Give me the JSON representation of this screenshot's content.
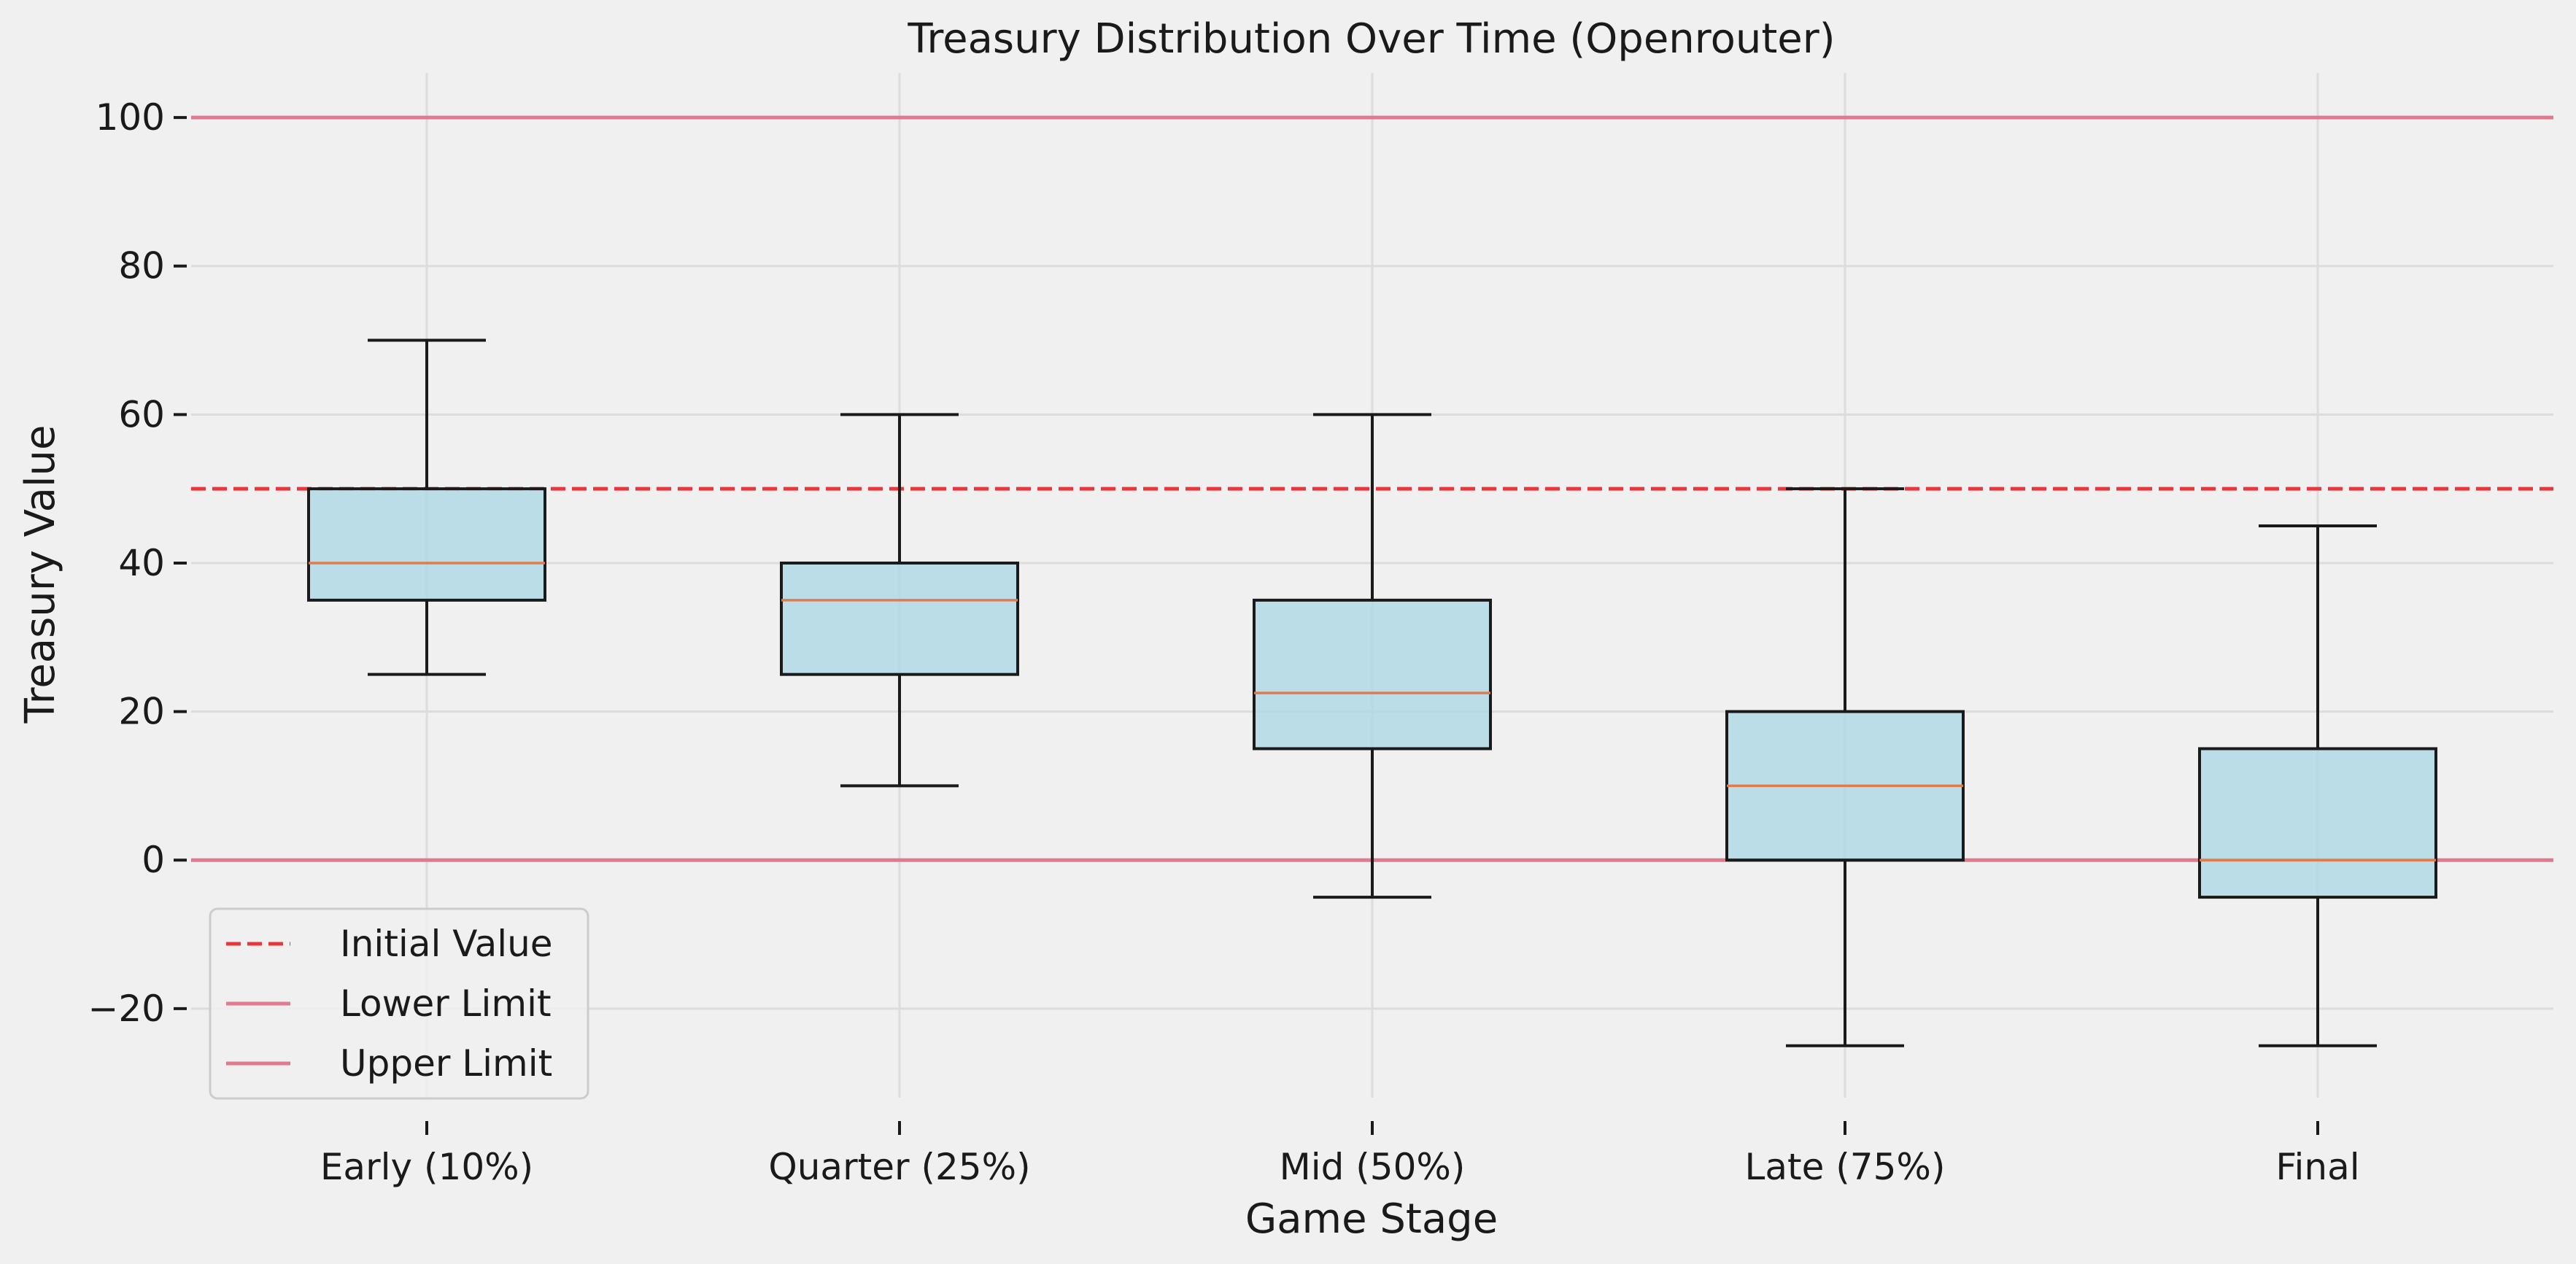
{
  "chart_data": {
    "type": "box",
    "title": "Treasury Distribution Over Time (Openrouter)",
    "xlabel": "Game Stage",
    "ylabel": "Treasury Value",
    "ylim": [
      -32,
      106
    ],
    "yticks": [
      -20,
      0,
      20,
      40,
      60,
      80,
      100
    ],
    "ytick_labels": [
      "−20",
      "0",
      "20",
      "40",
      "60",
      "80",
      "100"
    ],
    "grid": true,
    "categories": [
      "Early (10%)",
      "Quarter (25%)",
      "Mid (50%)",
      "Late (75%)",
      "Final"
    ],
    "boxes": [
      {
        "whislo": 25,
        "q1": 35,
        "med": 40,
        "q3": 50,
        "whishi": 70
      },
      {
        "whislo": 10,
        "q1": 25,
        "med": 35,
        "q3": 40,
        "whishi": 60
      },
      {
        "whislo": -5,
        "q1": 15,
        "med": 22.5,
        "q3": 35,
        "whishi": 60
      },
      {
        "whislo": -25,
        "q1": 0,
        "med": 10,
        "q3": 20,
        "whishi": 50
      },
      {
        "whislo": -25,
        "q1": -5,
        "med": 0,
        "q3": 15,
        "whishi": 45
      }
    ],
    "reference_lines": [
      {
        "name": "Initial Value",
        "y": 50,
        "style": "dashed",
        "color": "#e8383d"
      },
      {
        "name": "Lower Limit",
        "y": 0,
        "style": "solid",
        "color": "#e07a8c"
      },
      {
        "name": "Upper Limit",
        "y": 100,
        "style": "solid",
        "color": "#e07a8c"
      }
    ],
    "legend": {
      "placement": "lower-left",
      "entries": [
        "Initial Value",
        "Lower Limit",
        "Upper Limit"
      ]
    },
    "colors": {
      "box_fill": "#add8e6",
      "median": "#e07b4c",
      "background": "#f0f0f0"
    }
  }
}
